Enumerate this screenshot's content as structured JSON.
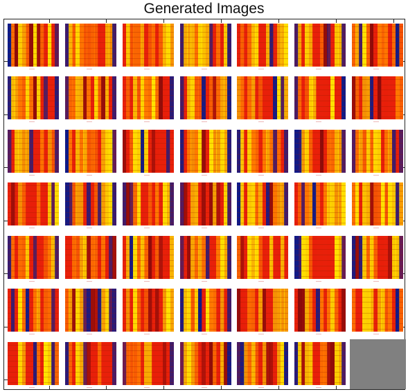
{
  "figure": {
    "title": "Generated Images",
    "grid": {
      "rows": 7,
      "cols": 7
    },
    "tile_count": 48,
    "empty_cell_color": "#808080",
    "colors": {
      "base_red": "#e8200a",
      "orange": "#ff7a00",
      "yellow": "#ffe400",
      "dark_blue": "#0a1a8a",
      "dark_red": "#8a0a0a"
    },
    "colormap": "autumn-like (red → orange → yellow) with dark blue edges"
  }
}
